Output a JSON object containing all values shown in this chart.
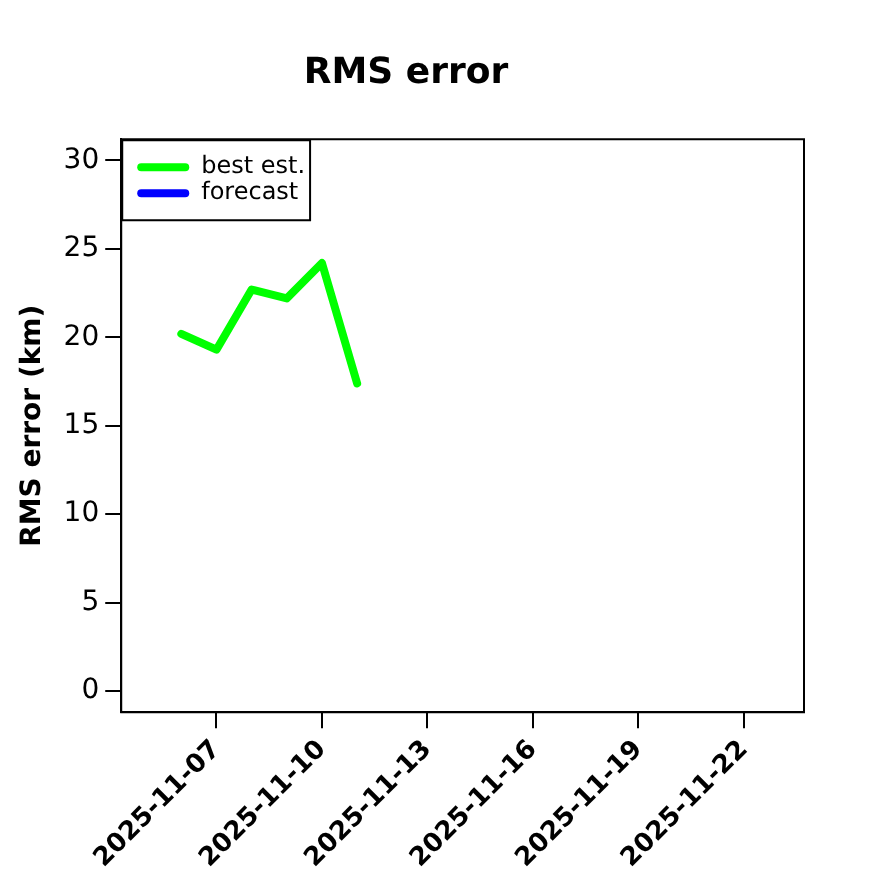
{
  "chart_data": {
    "type": "line",
    "title": "RMS error",
    "ylabel": "RMS error (km)",
    "series": [
      {
        "name": "best est.",
        "color": "#00ff00",
        "x": [
          "2025-11-06",
          "2025-11-07",
          "2025-11-08",
          "2025-11-09",
          "2025-11-10",
          "2025-11-11"
        ],
        "values": [
          20.2,
          19.3,
          22.7,
          22.2,
          24.2,
          17.4
        ]
      },
      {
        "name": "forecast",
        "color": "#0000ff"
      }
    ],
    "xlim": [
      "2025-11-04T07:00",
      "2025-11-23T17:00"
    ],
    "xticks": [
      "2025-11-07",
      "2025-11-10",
      "2025-11-13",
      "2025-11-16",
      "2025-11-19",
      "2025-11-22"
    ],
    "ylim": [
      -1.2,
      31.2
    ],
    "yticks": [
      0,
      5,
      10,
      15,
      20,
      25,
      30
    ],
    "grid": false,
    "legend": "top left",
    "marker": "none",
    "line_style": "solid"
  }
}
